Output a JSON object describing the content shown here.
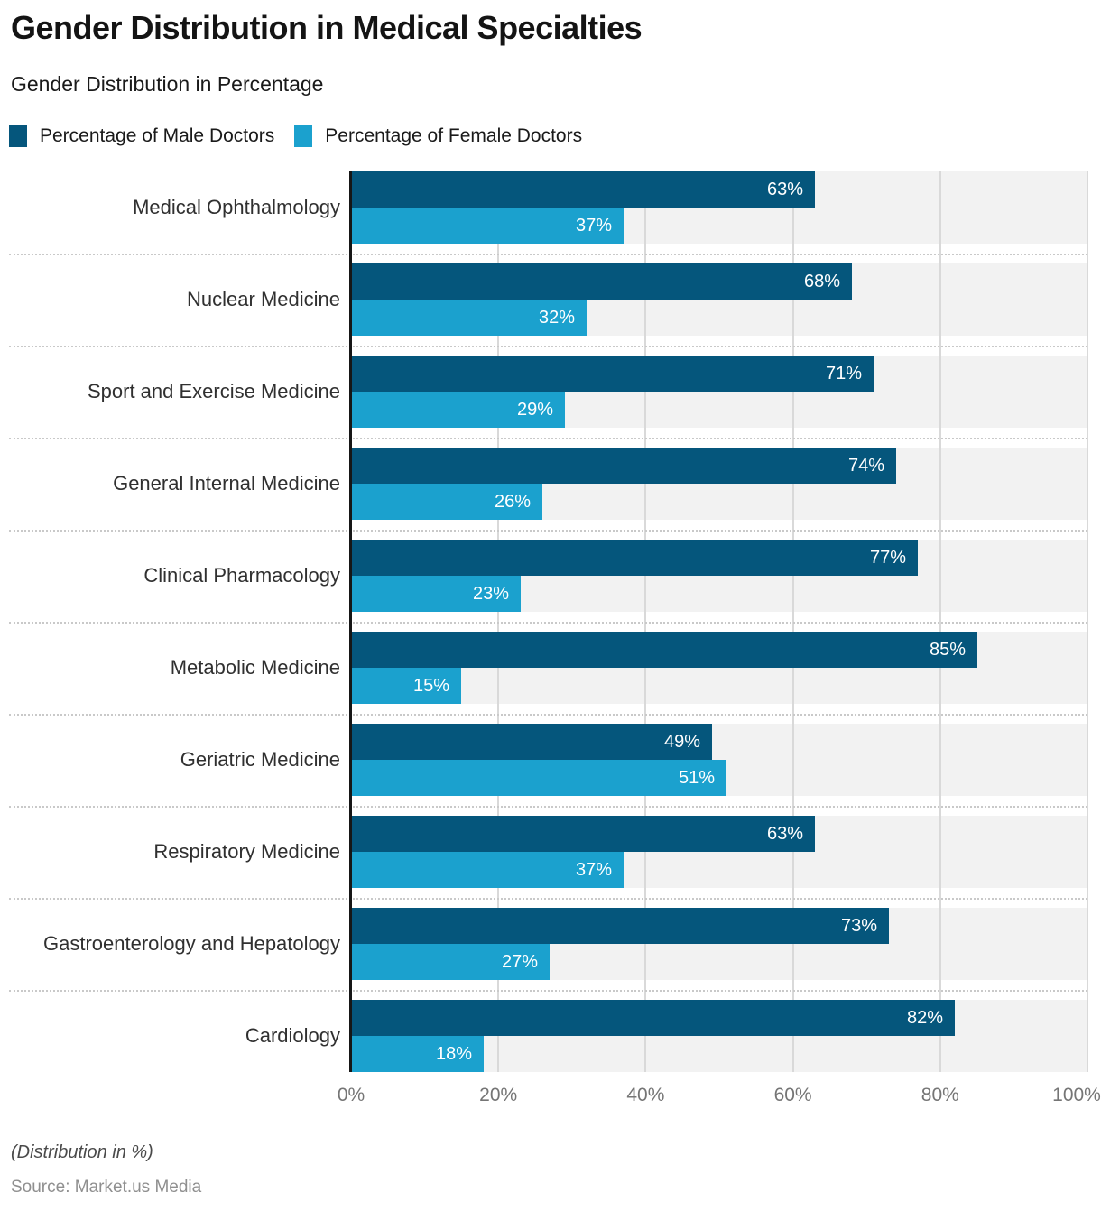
{
  "header": {
    "title": "Gender Distribution in Medical Specialties",
    "subtitle": "Gender Distribution in Percentage"
  },
  "legend": {
    "items": [
      {
        "label": "Percentage of Male Doctors",
        "color": "#05567c"
      },
      {
        "label": "Percentage of Female Doctors",
        "color": "#1ba1ce"
      }
    ]
  },
  "chart_data": {
    "type": "bar",
    "orientation": "horizontal",
    "title": "Gender Distribution in Medical Specialties",
    "subtitle": "Gender Distribution in Percentage",
    "categories": [
      "Medical Ophthalmology",
      "Nuclear Medicine",
      "Sport and Exercise Medicine",
      "General Internal Medicine",
      "Clinical Pharmacology",
      "Metabolic Medicine",
      "Geriatric Medicine",
      "Respiratory Medicine",
      "Gastroenterology and Hepatology",
      "Cardiology"
    ],
    "series": [
      {
        "name": "Percentage of Male Doctors",
        "color": "#05567c",
        "values": [
          63,
          68,
          71,
          74,
          77,
          85,
          49,
          63,
          73,
          82
        ]
      },
      {
        "name": "Percentage of Female Doctors",
        "color": "#1ba1ce",
        "values": [
          37,
          32,
          29,
          26,
          23,
          15,
          51,
          37,
          27,
          18
        ]
      }
    ],
    "value_suffix": "%",
    "x_ticks": [
      "0%",
      "20%",
      "40%",
      "60%",
      "80%",
      "100%"
    ],
    "xlim": [
      0,
      100
    ],
    "grid": true,
    "legend_position": "top",
    "row_background_color": "#f2f2f2"
  },
  "footer": {
    "note": "(Distribution in %)",
    "source": "Source: Market.us Media"
  }
}
